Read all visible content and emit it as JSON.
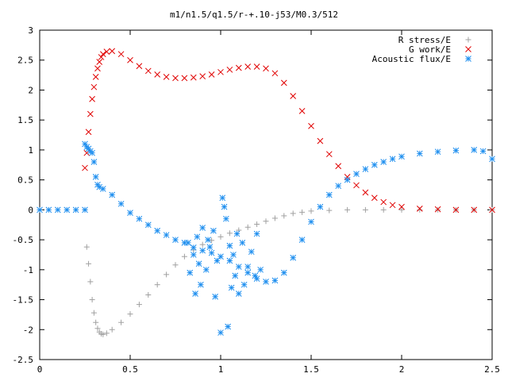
{
  "chart_data": {
    "type": "scatter",
    "title": "m1/n1.5/q1.5/r-+.10-j53/M0.3/512",
    "xlabel": "",
    "ylabel": "",
    "xlim": [
      0,
      2.5
    ],
    "ylim": [
      -2.5,
      3
    ],
    "x_ticks": [
      0,
      0.5,
      1,
      1.5,
      2,
      2.5
    ],
    "x_tick_labels": [
      "0",
      "0.5",
      "1",
      "1.5",
      "2",
      "2.5"
    ],
    "y_ticks": [
      -2.5,
      -2,
      -1.5,
      -1,
      -0.5,
      0,
      0.5,
      1,
      1.5,
      2,
      2.5,
      3
    ],
    "y_tick_labels": [
      "-2.5",
      "-2",
      "-1.5",
      "-1",
      "-0.5",
      "0",
      "0.5",
      "1",
      "1.5",
      "2",
      "2.5",
      "3"
    ],
    "grid": false,
    "legend_position": "top-right",
    "series": [
      {
        "name": "R stress/E",
        "marker": "plus",
        "color": "#a0a0a0",
        "points": [
          [
            0.25,
            0
          ],
          [
            0.26,
            -0.62
          ],
          [
            0.27,
            -0.9
          ],
          [
            0.28,
            -1.2
          ],
          [
            0.29,
            -1.5
          ],
          [
            0.3,
            -1.72
          ],
          [
            0.31,
            -1.88
          ],
          [
            0.32,
            -1.98
          ],
          [
            0.33,
            -2.04
          ],
          [
            0.34,
            -2.07
          ],
          [
            0.35,
            -2.08
          ],
          [
            0.37,
            -2.06
          ],
          [
            0.4,
            -2.0
          ],
          [
            0.45,
            -1.88
          ],
          [
            0.5,
            -1.74
          ],
          [
            0.55,
            -1.58
          ],
          [
            0.6,
            -1.42
          ],
          [
            0.65,
            -1.25
          ],
          [
            0.7,
            -1.08
          ],
          [
            0.75,
            -0.92
          ],
          [
            0.8,
            -0.78
          ],
          [
            0.85,
            -0.67
          ],
          [
            0.9,
            -0.58
          ],
          [
            0.95,
            -0.51
          ],
          [
            1.0,
            -0.45
          ],
          [
            1.05,
            -0.39
          ],
          [
            1.1,
            -0.34
          ],
          [
            1.15,
            -0.29
          ],
          [
            1.2,
            -0.24
          ],
          [
            1.25,
            -0.19
          ],
          [
            1.3,
            -0.14
          ],
          [
            1.35,
            -0.1
          ],
          [
            1.4,
            -0.06
          ],
          [
            1.45,
            -0.04
          ],
          [
            1.5,
            -0.02
          ],
          [
            1.6,
            -0.01
          ],
          [
            1.7,
            0.0
          ],
          [
            1.8,
            0.0
          ],
          [
            1.9,
            0.0
          ],
          [
            2.0,
            0.0
          ],
          [
            2.1,
            0.0
          ],
          [
            2.2,
            0.0
          ],
          [
            2.3,
            0.0
          ],
          [
            2.4,
            0.0
          ],
          [
            2.5,
            0.0
          ]
        ]
      },
      {
        "name": "G work/E",
        "marker": "cross",
        "color": "#e00000",
        "points": [
          [
            0.25,
            0.7
          ],
          [
            0.26,
            0.95
          ],
          [
            0.27,
            1.3
          ],
          [
            0.28,
            1.6
          ],
          [
            0.29,
            1.85
          ],
          [
            0.3,
            2.05
          ],
          [
            0.31,
            2.22
          ],
          [
            0.32,
            2.36
          ],
          [
            0.33,
            2.47
          ],
          [
            0.34,
            2.55
          ],
          [
            0.35,
            2.6
          ],
          [
            0.37,
            2.64
          ],
          [
            0.4,
            2.65
          ],
          [
            0.45,
            2.6
          ],
          [
            0.5,
            2.5
          ],
          [
            0.55,
            2.4
          ],
          [
            0.6,
            2.32
          ],
          [
            0.65,
            2.26
          ],
          [
            0.7,
            2.22
          ],
          [
            0.75,
            2.2
          ],
          [
            0.8,
            2.2
          ],
          [
            0.85,
            2.21
          ],
          [
            0.9,
            2.23
          ],
          [
            0.95,
            2.26
          ],
          [
            1.0,
            2.3
          ],
          [
            1.05,
            2.34
          ],
          [
            1.1,
            2.37
          ],
          [
            1.15,
            2.39
          ],
          [
            1.2,
            2.39
          ],
          [
            1.25,
            2.36
          ],
          [
            1.3,
            2.28
          ],
          [
            1.35,
            2.12
          ],
          [
            1.4,
            1.9
          ],
          [
            1.45,
            1.65
          ],
          [
            1.5,
            1.4
          ],
          [
            1.55,
            1.15
          ],
          [
            1.6,
            0.93
          ],
          [
            1.65,
            0.73
          ],
          [
            1.7,
            0.55
          ],
          [
            1.75,
            0.41
          ],
          [
            1.8,
            0.29
          ],
          [
            1.85,
            0.2
          ],
          [
            1.9,
            0.13
          ],
          [
            1.95,
            0.08
          ],
          [
            2.0,
            0.05
          ],
          [
            2.1,
            0.02
          ],
          [
            2.2,
            0.01
          ],
          [
            2.3,
            0.0
          ],
          [
            2.4,
            0.0
          ],
          [
            2.5,
            0.0
          ]
        ]
      },
      {
        "name": "Acoustic flux/E",
        "marker": "star",
        "color": "#1f8fef",
        "points": [
          [
            0.0,
            0
          ],
          [
            0.05,
            0
          ],
          [
            0.1,
            0
          ],
          [
            0.15,
            0
          ],
          [
            0.2,
            0
          ],
          [
            0.25,
            0
          ],
          [
            0.25,
            1.1
          ],
          [
            0.26,
            1.05
          ],
          [
            0.27,
            1.02
          ],
          [
            0.28,
            0.98
          ],
          [
            0.29,
            0.95
          ],
          [
            0.3,
            0.8
          ],
          [
            0.31,
            0.55
          ],
          [
            0.32,
            0.42
          ],
          [
            0.33,
            0.38
          ],
          [
            0.35,
            0.35
          ],
          [
            0.4,
            0.25
          ],
          [
            0.45,
            0.1
          ],
          [
            0.5,
            -0.05
          ],
          [
            0.55,
            -0.15
          ],
          [
            0.6,
            -0.25
          ],
          [
            0.65,
            -0.35
          ],
          [
            0.7,
            -0.42
          ],
          [
            0.75,
            -0.5
          ],
          [
            0.8,
            -0.55
          ],
          [
            0.85,
            -0.63
          ],
          [
            0.9,
            -0.68
          ],
          [
            0.95,
            -0.72
          ],
          [
            1.0,
            -0.78
          ],
          [
            1.05,
            -0.85
          ],
          [
            1.1,
            -0.95
          ],
          [
            1.15,
            -1.05
          ],
          [
            1.2,
            -1.15
          ],
          [
            1.25,
            -1.2
          ],
          [
            1.3,
            -1.18
          ],
          [
            1.35,
            -1.05
          ],
          [
            1.4,
            -0.8
          ],
          [
            1.45,
            -0.5
          ],
          [
            1.5,
            -0.2
          ],
          [
            1.55,
            0.05
          ],
          [
            1.6,
            0.25
          ],
          [
            1.65,
            0.4
          ],
          [
            1.7,
            0.5
          ],
          [
            1.75,
            0.6
          ],
          [
            1.8,
            0.68
          ],
          [
            1.85,
            0.75
          ],
          [
            1.9,
            0.8
          ],
          [
            1.95,
            0.85
          ],
          [
            2.0,
            0.89
          ],
          [
            2.1,
            0.94
          ],
          [
            2.2,
            0.97
          ],
          [
            2.3,
            0.99
          ],
          [
            2.4,
            1.0
          ],
          [
            2.45,
            0.98
          ],
          [
            2.5,
            0.85
          ],
          [
            0.82,
            -0.55
          ],
          [
            0.85,
            -0.75
          ],
          [
            0.87,
            -0.45
          ],
          [
            0.88,
            -0.9
          ],
          [
            0.9,
            -0.3
          ],
          [
            0.92,
            -1.0
          ],
          [
            0.94,
            -0.62
          ],
          [
            0.96,
            -0.35
          ],
          [
            0.98,
            -0.85
          ],
          [
            1.0,
            -2.05
          ],
          [
            1.01,
            0.2
          ],
          [
            1.02,
            0.05
          ],
          [
            1.03,
            -0.15
          ],
          [
            1.04,
            -1.95
          ],
          [
            1.05,
            -0.6
          ],
          [
            1.06,
            -1.3
          ],
          [
            1.07,
            -0.75
          ],
          [
            1.08,
            -1.1
          ],
          [
            1.09,
            -0.4
          ],
          [
            1.1,
            -1.4
          ],
          [
            1.12,
            -0.55
          ],
          [
            1.13,
            -1.25
          ],
          [
            1.15,
            -0.95
          ],
          [
            1.17,
            -0.7
          ],
          [
            1.19,
            -1.1
          ],
          [
            1.2,
            -0.4
          ],
          [
            1.22,
            -1.0
          ],
          [
            0.83,
            -1.05
          ],
          [
            0.86,
            -1.4
          ],
          [
            0.89,
            -1.25
          ],
          [
            0.93,
            -0.5
          ],
          [
            0.97,
            -1.45
          ]
        ]
      }
    ]
  }
}
